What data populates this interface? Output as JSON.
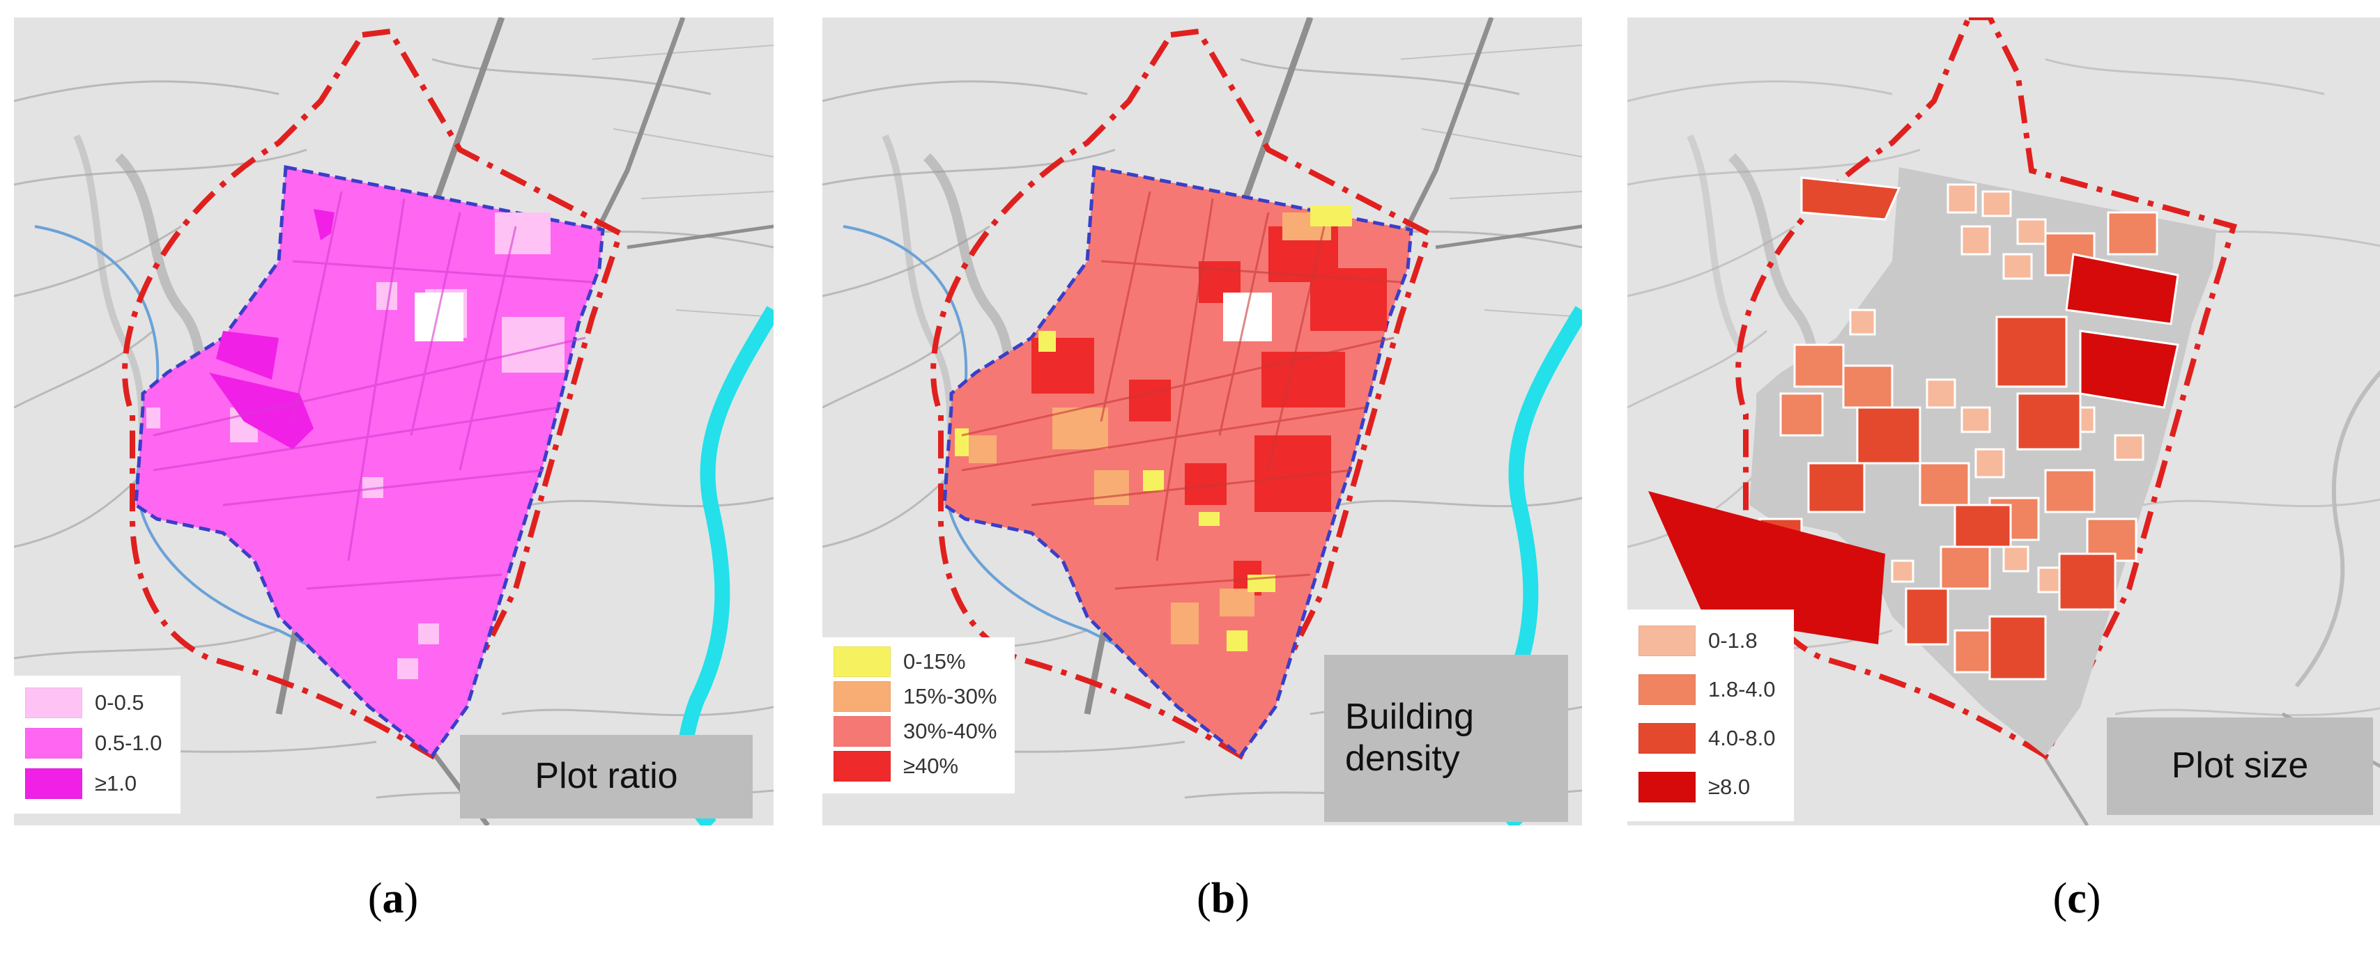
{
  "panels": [
    {
      "id": "a",
      "caption_letter": "a",
      "title": "Plot ratio",
      "legend": [
        {
          "label": "0-0.5",
          "color": "#ffc2f5"
        },
        {
          "label": "0.5-1.0",
          "color": "#ff66f2"
        },
        {
          "label": "≥1.0",
          "color": "#f020e6"
        }
      ]
    },
    {
      "id": "b",
      "caption_letter": "b",
      "title_lines": [
        "Building",
        "density"
      ],
      "legend": [
        {
          "label": "0-15%",
          "color": "#f6f25f"
        },
        {
          "label": "15%-30%",
          "color": "#f8ad74"
        },
        {
          "label": "30%-40%",
          "color": "#f67874"
        },
        {
          "label": "≥40%",
          "color": "#ee2a2a"
        }
      ]
    },
    {
      "id": "c",
      "caption_letter": "c",
      "title": "Plot size",
      "legend": [
        {
          "label": "0-1.8",
          "color": "#f7b99b"
        },
        {
          "label": "1.8-4.0",
          "color": "#f08360"
        },
        {
          "label": "4.0-8.0",
          "color": "#e4492e"
        },
        {
          "label": "≥8.0",
          "color": "#d60a0a"
        }
      ]
    }
  ]
}
